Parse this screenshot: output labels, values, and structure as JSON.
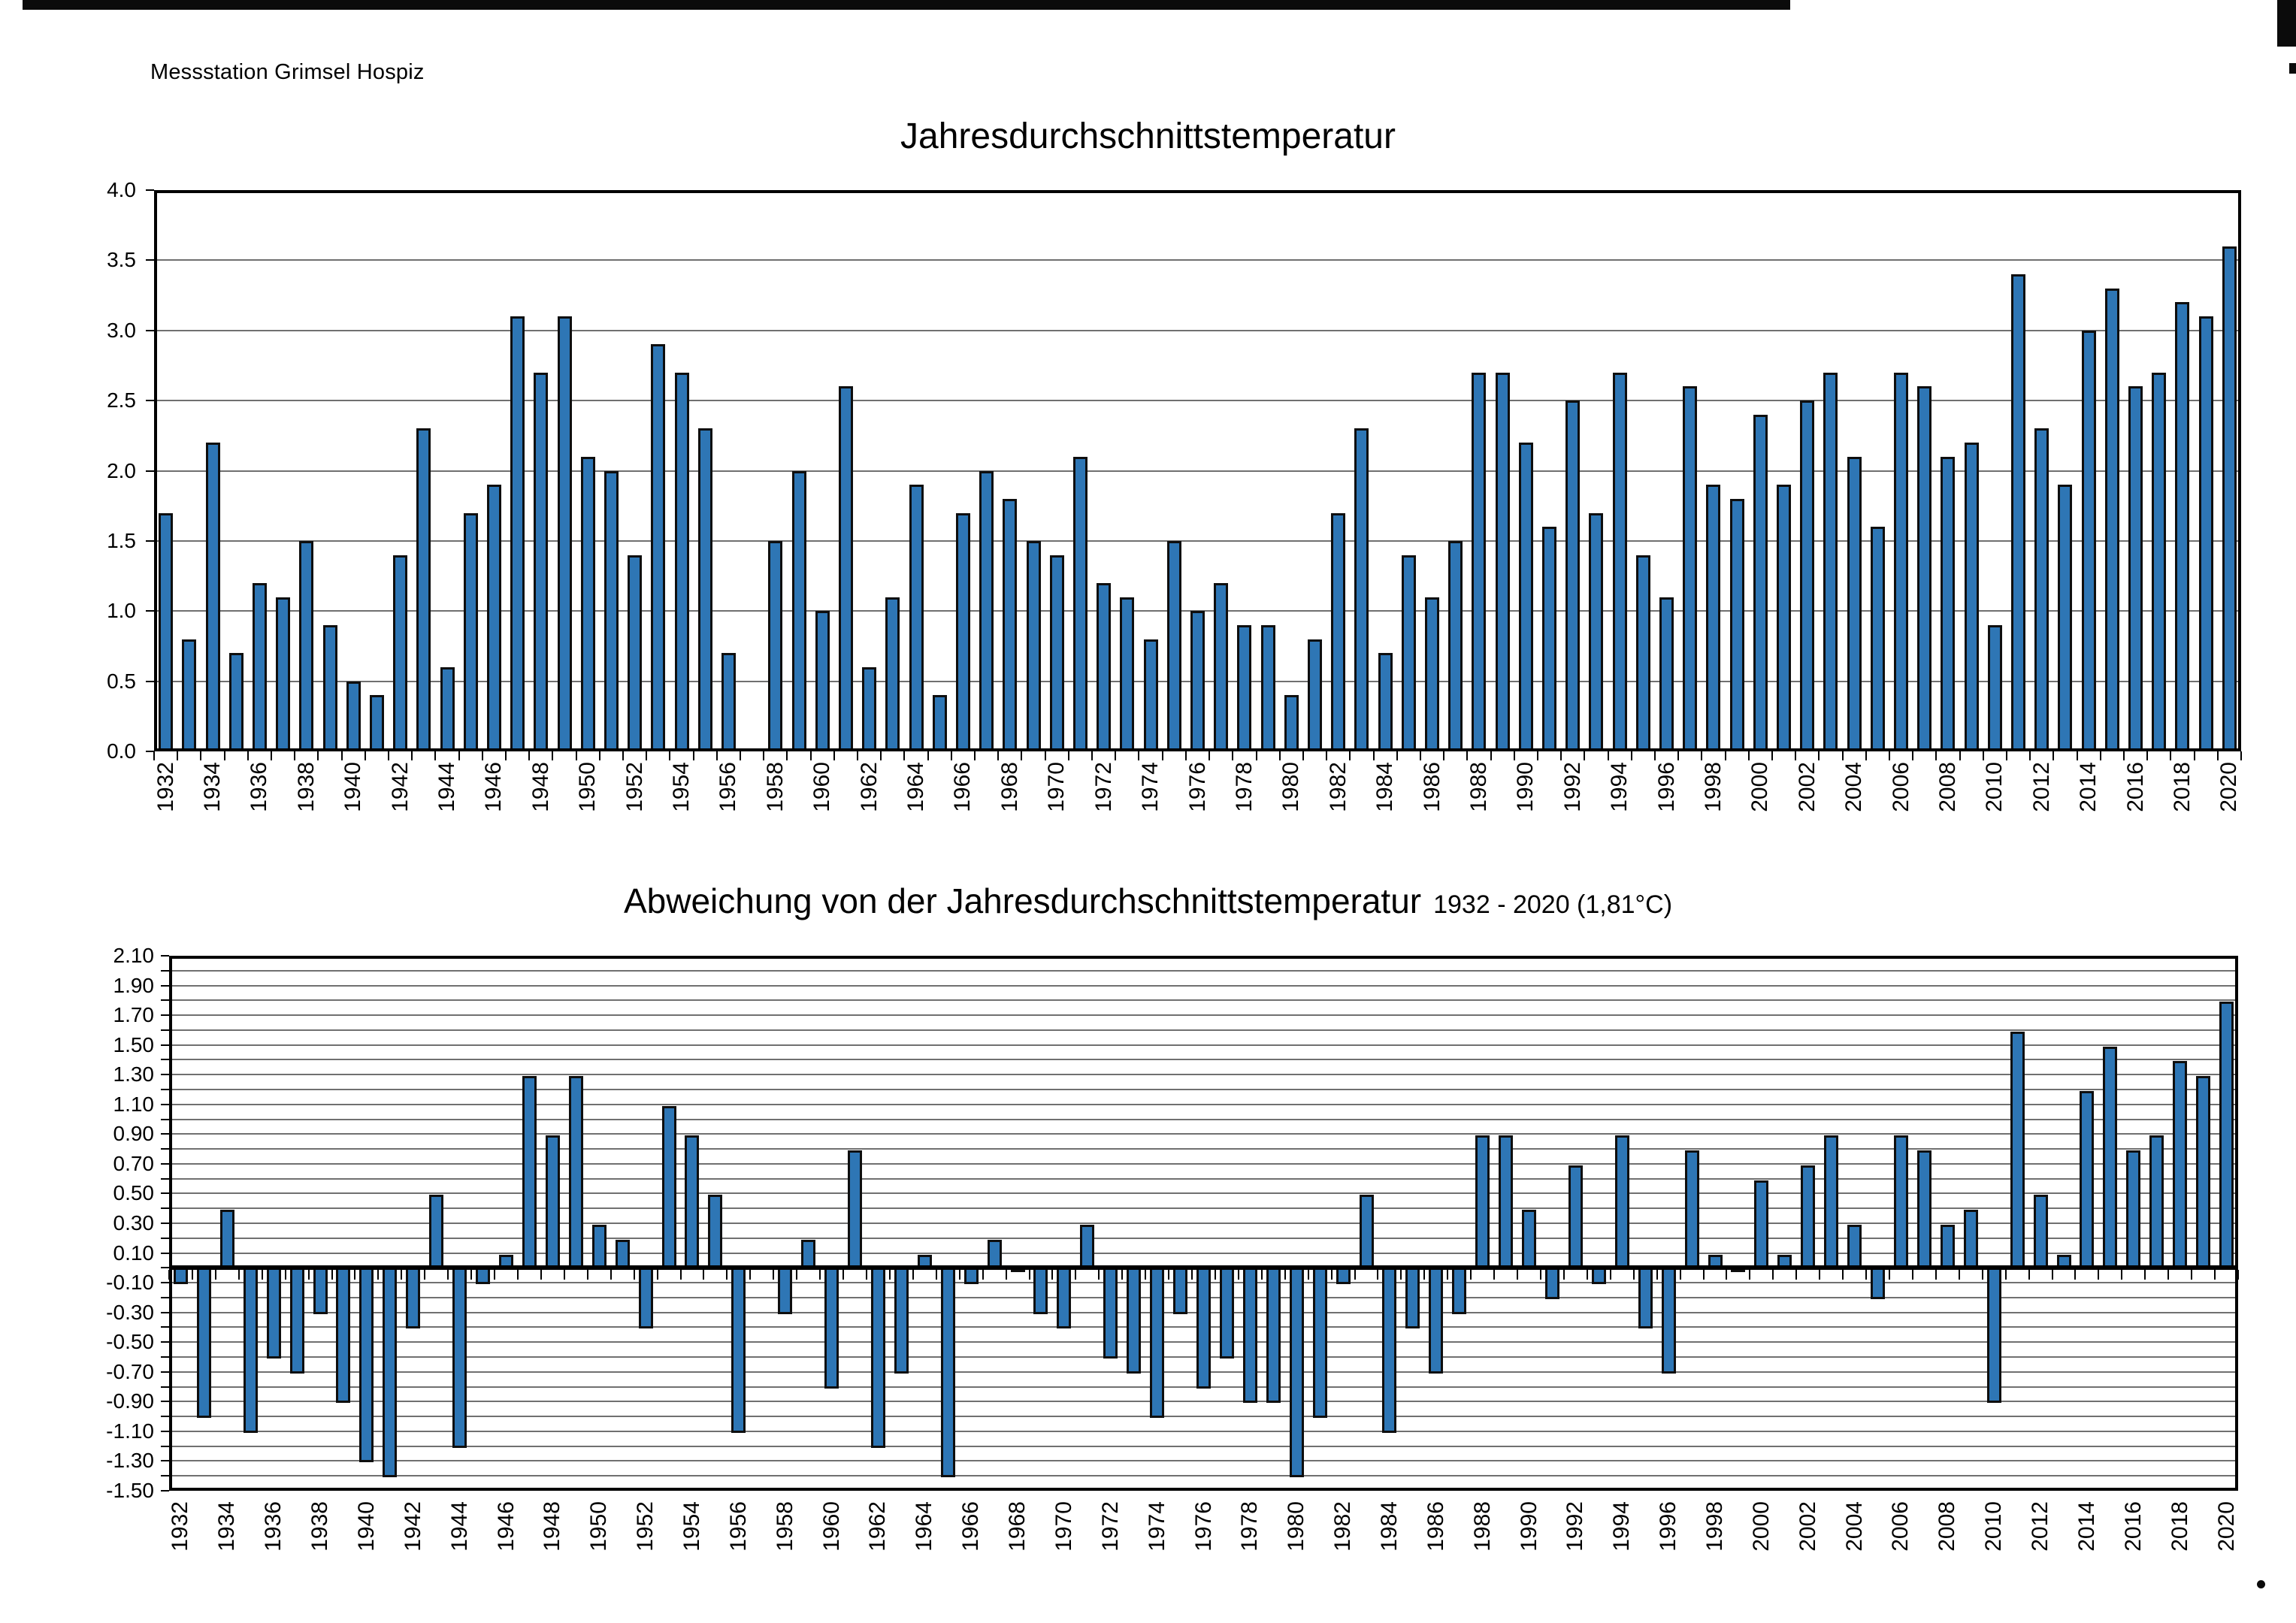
{
  "page": {
    "station_label": "Messstation Grimsel Hospiz"
  },
  "colors": {
    "bar_fill": "#2e76b5",
    "bar_border": "#0e0e0e",
    "grid_line": "#575757",
    "axis": "#000000",
    "paper": "#ffffff"
  },
  "chart_data": [
    {
      "type": "bar",
      "title": "Jahresdurchschnittstemperatur",
      "xlabel": "",
      "ylabel": "",
      "ylim": [
        0.0,
        4.0
      ],
      "grid_step": 0.5,
      "grid": true,
      "legend": false,
      "zero_axis": false,
      "year_start": 1932,
      "year_end": 2020,
      "missing_bar_years": [
        1957
      ],
      "y_tick_labels": [
        "4.0",
        "3.5",
        "3.0",
        "2.5",
        "2.0",
        "1.5",
        "1.0",
        "0.5",
        "0.0"
      ],
      "x_tick_labels": [
        "1932",
        "1934",
        "1936",
        "1938",
        "1940",
        "1942",
        "1944",
        "1946",
        "1948",
        "1950",
        "1952",
        "1954",
        "1956",
        "1958",
        "1960",
        "1962",
        "1964",
        "1966",
        "1968",
        "1970",
        "1972",
        "1974",
        "1976",
        "1978",
        "1980",
        "1982",
        "1984",
        "1986",
        "1988",
        "1990",
        "1992",
        "1994",
        "1996",
        "1998",
        "2000",
        "2002",
        "2004",
        "2006",
        "2008",
        "2010",
        "2012",
        "2014",
        "2016",
        "2018",
        "2020"
      ],
      "values": [
        1.7,
        0.8,
        2.2,
        0.7,
        1.2,
        1.1,
        1.5,
        0.9,
        0.5,
        0.4,
        1.4,
        2.3,
        0.6,
        1.7,
        1.9,
        3.1,
        2.7,
        3.1,
        2.1,
        2.0,
        1.4,
        2.9,
        2.7,
        2.3,
        0.7,
        null,
        1.5,
        2.0,
        1.0,
        2.6,
        0.6,
        1.1,
        1.9,
        0.4,
        1.7,
        2.0,
        1.8,
        1.5,
        1.4,
        2.1,
        1.2,
        1.1,
        0.8,
        1.5,
        1.0,
        1.2,
        0.9,
        0.9,
        0.4,
        0.8,
        1.7,
        2.3,
        0.7,
        1.4,
        1.1,
        1.5,
        2.7,
        2.7,
        2.2,
        1.6,
        2.5,
        1.7,
        2.7,
        1.4,
        1.1,
        2.6,
        1.9,
        1.8,
        2.4,
        1.9,
        2.5,
        2.7,
        2.1,
        1.6,
        2.7,
        2.6,
        2.1,
        2.2,
        0.9,
        3.4,
        2.3,
        1.9,
        3.0,
        3.3,
        2.6,
        2.7,
        3.2,
        3.1,
        3.6
      ]
    },
    {
      "type": "bar",
      "title": "Abweichung von der Jahresdurchschnittstemperatur",
      "title_suffix": "1932 - 2020 (1,81°C)",
      "xlabel": "",
      "ylabel": "",
      "ylim": [
        -1.5,
        2.1
      ],
      "grid_step": 0.1,
      "grid": true,
      "legend": false,
      "zero_axis": true,
      "year_start": 1932,
      "year_end": 2020,
      "missing_bar_years": [
        1957
      ],
      "y_tick_labels": [
        "2.10",
        "1.90",
        "1.70",
        "1.50",
        "1.30",
        "1.10",
        "0.90",
        "0.70",
        "0.50",
        "0.30",
        "0.10",
        "-0.10",
        "-0.30",
        "-0.50",
        "-0.70",
        "-0.90",
        "-1.10",
        "-1.30",
        "-1.50"
      ],
      "x_tick_labels": [
        "1932",
        "1934",
        "1936",
        "1938",
        "1940",
        "1942",
        "1944",
        "1946",
        "1948",
        "1950",
        "1952",
        "1954",
        "1956",
        "1958",
        "1960",
        "1962",
        "1964",
        "1966",
        "1968",
        "1970",
        "1972",
        "1974",
        "1976",
        "1978",
        "1980",
        "1982",
        "1984",
        "1986",
        "1988",
        "1990",
        "1992",
        "1994",
        "1996",
        "1998",
        "2000",
        "2002",
        "2004",
        "2006",
        "2008",
        "2010",
        "2012",
        "2014",
        "2016",
        "2018",
        "2020"
      ],
      "values": [
        -0.11,
        -1.01,
        0.39,
        -1.11,
        -0.61,
        -0.71,
        -0.31,
        -0.91,
        -1.31,
        -1.41,
        -0.41,
        0.49,
        -1.21,
        -0.11,
        0.09,
        1.29,
        0.89,
        1.29,
        0.29,
        0.19,
        -0.41,
        1.09,
        0.89,
        0.49,
        -1.11,
        null,
        -0.31,
        0.19,
        -0.81,
        0.79,
        -1.21,
        -0.71,
        0.09,
        -1.41,
        -0.11,
        0.19,
        -0.01,
        -0.31,
        -0.41,
        0.29,
        -0.61,
        -0.71,
        -1.01,
        -0.31,
        -0.81,
        -0.61,
        -0.91,
        -0.91,
        -1.41,
        -1.01,
        -0.11,
        0.49,
        -1.11,
        -0.41,
        -0.71,
        -0.31,
        0.89,
        0.89,
        0.39,
        -0.21,
        0.69,
        -0.11,
        0.89,
        -0.41,
        -0.71,
        0.79,
        0.09,
        -0.01,
        0.59,
        0.09,
        0.69,
        0.89,
        0.29,
        -0.21,
        0.89,
        0.79,
        0.29,
        0.39,
        -0.91,
        1.59,
        0.49,
        0.09,
        1.19,
        1.49,
        0.79,
        0.89,
        1.39,
        1.29,
        1.79
      ]
    }
  ]
}
